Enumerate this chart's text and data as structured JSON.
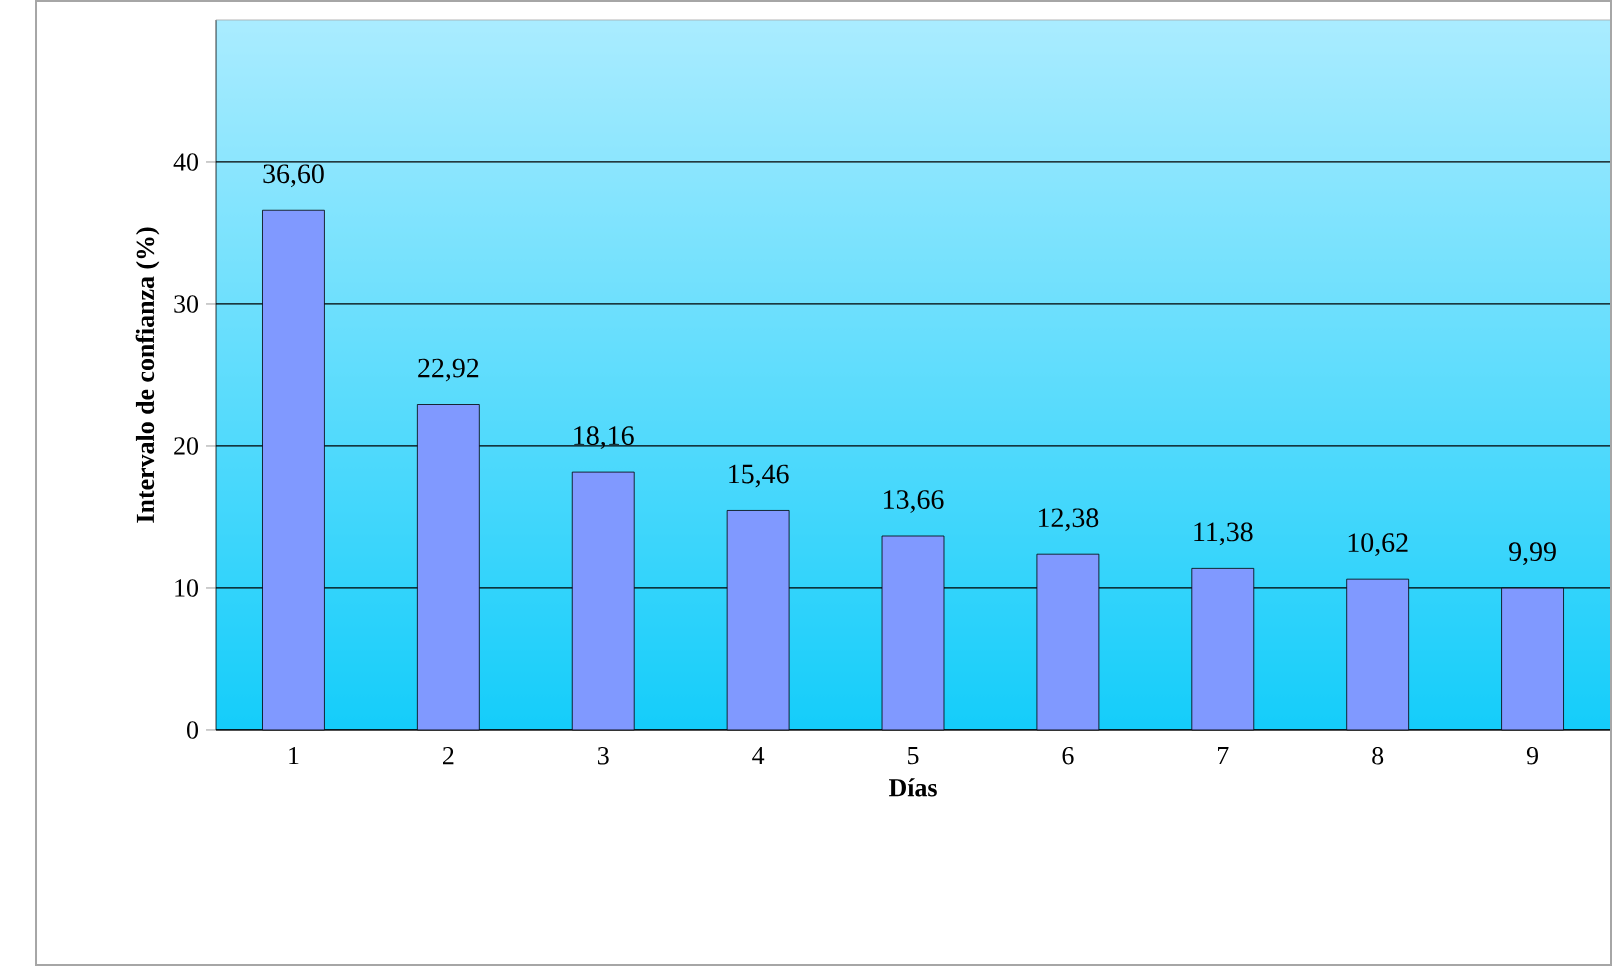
{
  "chart_data": {
    "type": "bar",
    "xlabel": "Días",
    "ylabel": "Intervalo de confianza (%)",
    "categories": [
      "1",
      "2",
      "3",
      "4",
      "5",
      "6",
      "7",
      "8",
      "9"
    ],
    "values": [
      36.6,
      22.92,
      18.16,
      15.46,
      13.66,
      12.38,
      11.38,
      10.62,
      9.99
    ],
    "value_labels": [
      "36,60",
      "22,92",
      "18,16",
      "15,46",
      "13,66",
      "12,38",
      "11,38",
      "10,62",
      "9,99"
    ],
    "color": "#8099ff",
    "ylim": [
      0,
      50
    ],
    "yticks": [
      0,
      10,
      20,
      30,
      40
    ],
    "grid": "y"
  }
}
